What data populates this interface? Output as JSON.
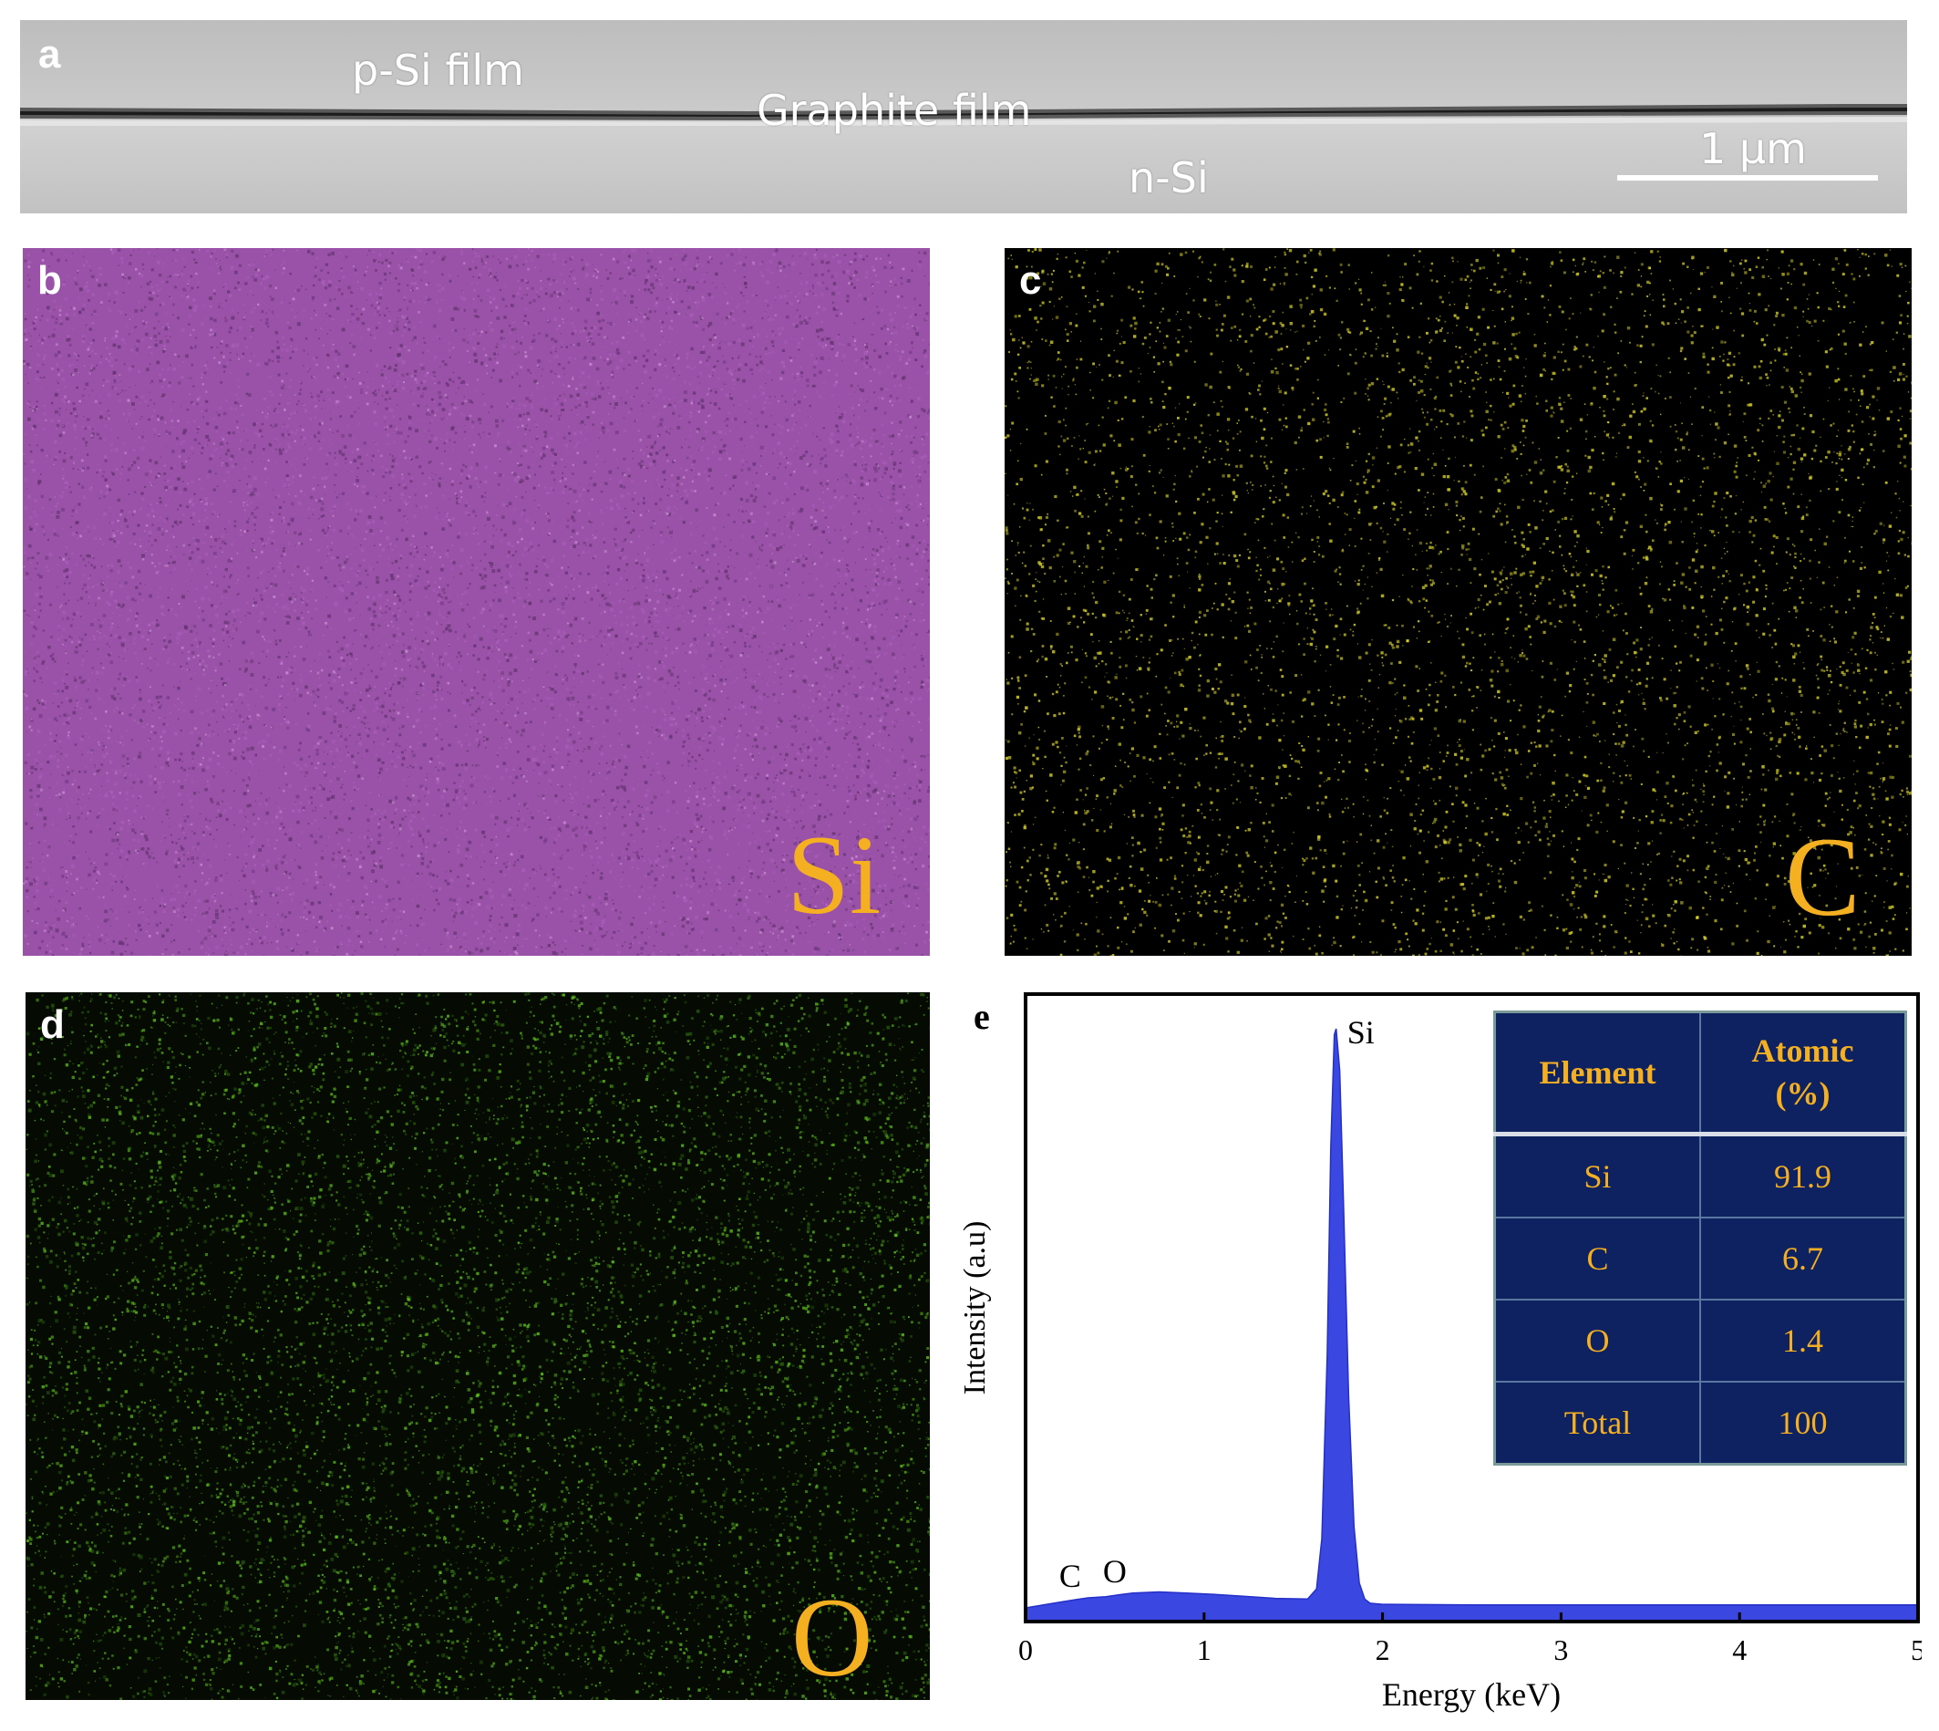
{
  "panel_a": {
    "label": "a",
    "p_si_film": "p-Si film",
    "graphite_film": "Graphite film",
    "n_si": "n-Si",
    "scale_bar": "1 μm"
  },
  "panel_b": {
    "label": "b",
    "element": "Si",
    "map_color": "#a75cb6"
  },
  "panel_c": {
    "label": "c",
    "element": "C",
    "map_color": "#d8d22a"
  },
  "panel_d": {
    "label": "d",
    "element": "O",
    "map_color": "#5fc21e"
  },
  "panel_e": {
    "label": "e",
    "table": {
      "headers": [
        "Element",
        "Atomic (%)"
      ],
      "rows": [
        [
          "Si",
          "91.9"
        ],
        [
          "C",
          "6.7"
        ],
        [
          "O",
          "1.4"
        ],
        [
          "Total",
          "100"
        ]
      ]
    }
  },
  "chart_data": {
    "type": "area",
    "title": "",
    "xlabel": "Energy (keV)",
    "ylabel": "Intensity (a.u)",
    "xlim": [
      0,
      5
    ],
    "ylim": [
      0,
      100
    ],
    "xticks": [
      "0",
      "1",
      "2",
      "3",
      "4",
      "5"
    ],
    "grid": false,
    "color": "#3a47e0",
    "series": [
      {
        "x": [
          0,
          0.1,
          0.2,
          0.28,
          0.35,
          0.45,
          0.52,
          0.6,
          0.75,
          0.9,
          1.05,
          1.2,
          1.4,
          1.58,
          1.63,
          1.66,
          1.69,
          1.71,
          1.73,
          1.74,
          1.76,
          1.78,
          1.81,
          1.84,
          1.87,
          1.9,
          1.93,
          2.0,
          2.5,
          3.0,
          3.5,
          4.0,
          4.5,
          5.0
        ],
        "y": [
          2.3,
          2.8,
          3.3,
          3.7,
          4.0,
          4.2,
          4.5,
          4.8,
          5.0,
          4.8,
          4.6,
          4.3,
          3.9,
          3.8,
          5.5,
          14,
          45,
          80,
          99,
          100,
          93,
          72,
          38,
          16,
          6.5,
          3.8,
          3.1,
          2.9,
          2.8,
          2.8,
          2.8,
          2.8,
          2.8,
          2.8
        ]
      }
    ],
    "annotations": [
      {
        "text": "Si",
        "x": 1.74,
        "y": 100
      },
      {
        "text": "C",
        "x": 0.28,
        "y": 3.7
      },
      {
        "text": "O",
        "x": 0.52,
        "y": 4.5
      }
    ]
  }
}
